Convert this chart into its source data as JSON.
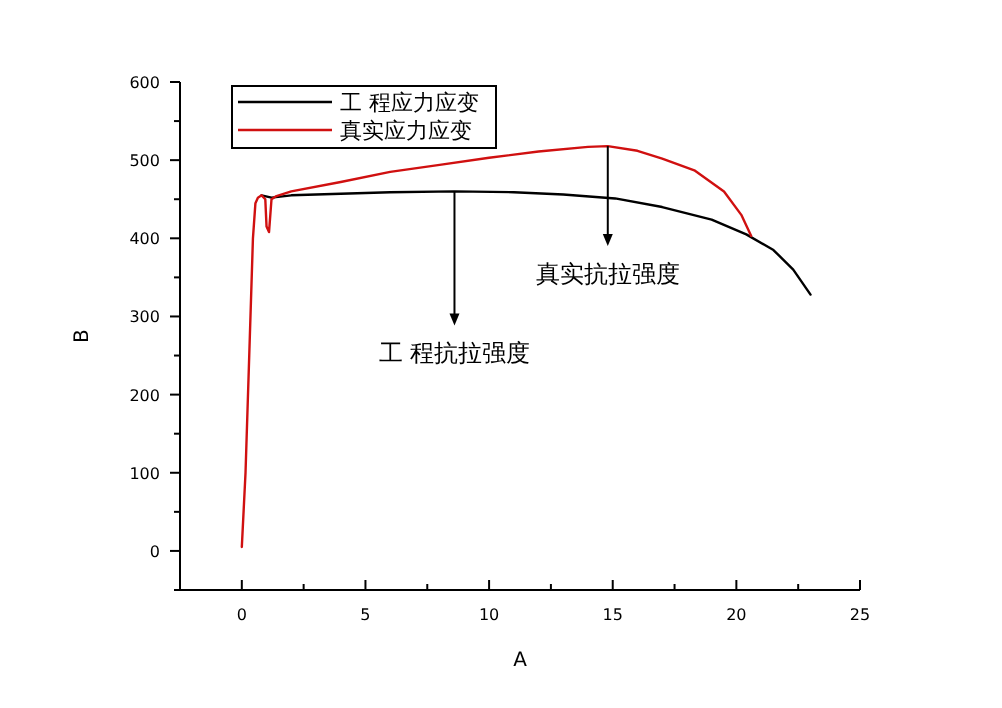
{
  "chart_data": {
    "type": "line",
    "xlabel": "A",
    "ylabel": "B",
    "xlim": [
      -2.5,
      25
    ],
    "xticks": [
      {
        "value": -2.5,
        "label": null
      },
      0,
      {
        "value": 2.5,
        "label": null
      },
      5,
      {
        "value": 7.5,
        "label": null
      },
      10,
      {
        "value": 12.5,
        "label": null
      },
      15,
      {
        "value": 17.5,
        "label": null
      },
      20,
      {
        "value": 22.5,
        "label": null
      },
      25
    ],
    "ylim": [
      -50,
      600
    ],
    "yticks": [
      {
        "value": -50,
        "label": null
      },
      0,
      {
        "value": 50,
        "label": null
      },
      100,
      {
        "value": 150,
        "label": null
      },
      200,
      {
        "value": 250,
        "label": null
      },
      300,
      {
        "value": 350,
        "label": null
      },
      400,
      {
        "value": 450,
        "label": null
      },
      500,
      {
        "value": 550,
        "label": null
      },
      600
    ],
    "grid": false,
    "legend": "top left",
    "marker": "none",
    "line_style": "solid",
    "series": [
      {
        "name": "工 程应力应变",
        "color": "#000000",
        "x": [
          0.8,
          1.2,
          2,
          4,
          6,
          8.6,
          11,
          13,
          15.1,
          17,
          19,
          20.4,
          21.5,
          22.3,
          23
        ],
        "values": [
          455,
          452,
          455,
          457,
          459,
          460,
          459,
          456,
          451,
          440,
          424,
          405,
          385,
          360,
          328
        ]
      },
      {
        "name": "真实应力应变",
        "color": "#d01010",
        "x": [
          0,
          0.15,
          0.3,
          0.45,
          0.55,
          0.65,
          0.8,
          0.95,
          1.0,
          1.1,
          1.2,
          1.4,
          2,
          4,
          6,
          8,
          10,
          12,
          14,
          14.8,
          16,
          17,
          18.3,
          19.5,
          20.2,
          20.6
        ],
        "values": [
          5,
          100,
          250,
          400,
          445,
          452,
          455,
          450,
          415,
          408,
          450,
          454,
          460,
          472,
          485,
          494,
          503,
          511,
          517,
          518,
          512,
          502,
          487,
          460,
          430,
          403
        ]
      }
    ],
    "annotations": [
      {
        "text": "工 程抗拉强度",
        "x": 8.6,
        "y": 460
      },
      {
        "text": "真实抗拉强度",
        "x": 14.8,
        "y": 518
      }
    ]
  }
}
